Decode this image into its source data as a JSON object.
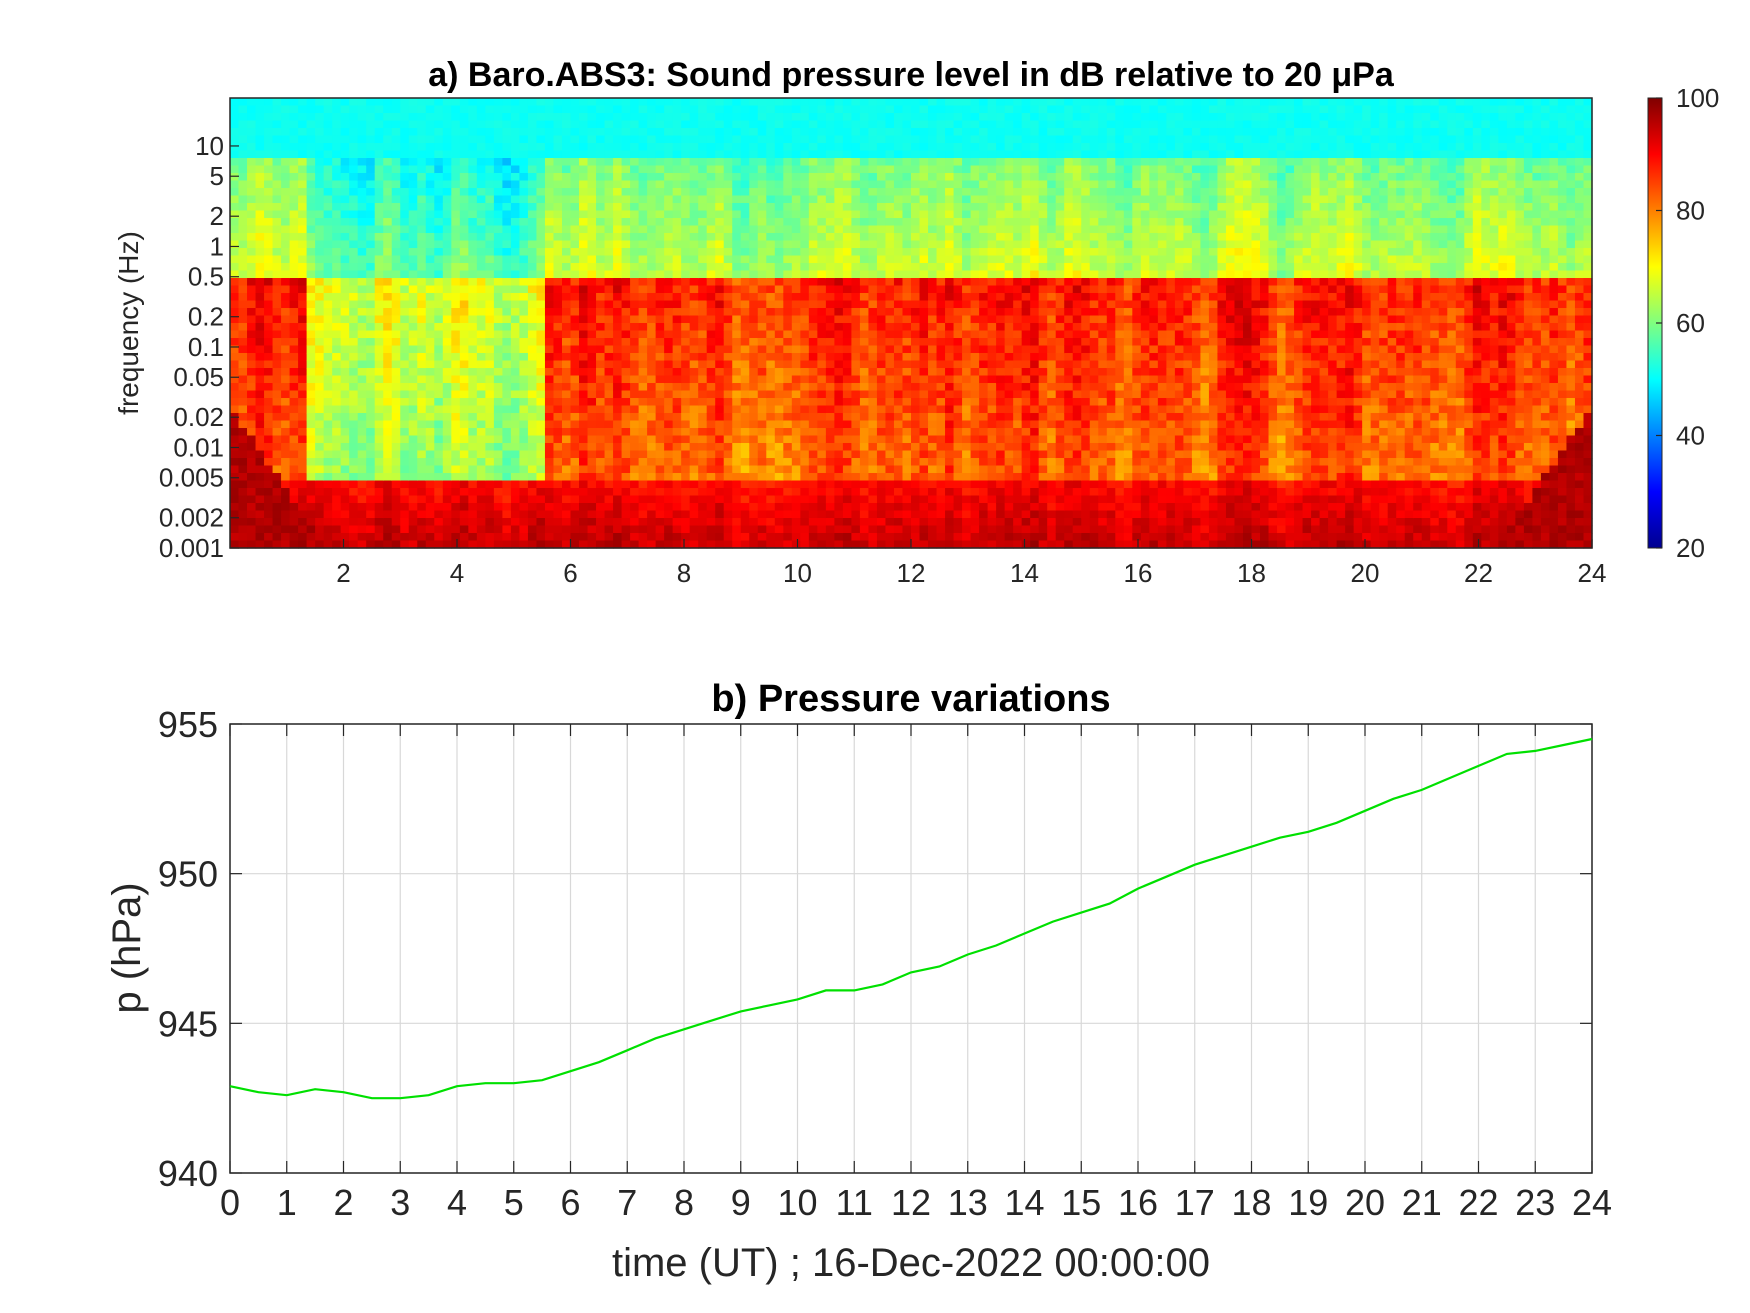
{
  "chart_data": [
    {
      "type": "heatmap",
      "title": "a) Baro.ABS3: Sound pressure level in dB relative to 20 μPa",
      "ylabel": "frequency (Hz)",
      "xlabel": "",
      "x_ticks": [
        2,
        4,
        6,
        8,
        10,
        12,
        14,
        16,
        18,
        20,
        22,
        24
      ],
      "x_tick_labels": [
        "2",
        "4",
        "6",
        "8",
        "10",
        "12",
        "14",
        "16",
        "18",
        "20",
        "22",
        "24"
      ],
      "xlim": [
        0,
        24
      ],
      "y_scale": "log",
      "ylim": [
        0.001,
        30
      ],
      "y_ticks": [
        0.001,
        0.002,
        0.005,
        0.01,
        0.02,
        0.05,
        0.1,
        0.2,
        0.5,
        1,
        2,
        5,
        10
      ],
      "y_tick_labels": [
        "0.001",
        "0.002",
        "0.005",
        "0.01",
        "0.02",
        "0.05",
        "0.1",
        "0.2",
        "0.5",
        "1",
        "2",
        "5",
        "10"
      ],
      "colorbar": {
        "ticks": [
          20,
          40,
          60,
          80,
          100
        ],
        "tick_labels": [
          "20",
          "40",
          "60",
          "80",
          "100"
        ],
        "range": [
          20,
          100
        ],
        "colormap": "jet"
      },
      "description_levels": {
        "above_7Hz": 50,
        "0.5_to_5Hz": 55,
        "0.05_to_0.2Hz": 83,
        "below_0.005Hz": 92
      },
      "quiet_window_hours": [
        1.4,
        5.6
      ]
    },
    {
      "type": "line",
      "title": "b) Pressure variations",
      "xlabel": "time (UT) ; 16-Dec-2022 00:00:00",
      "ylabel": "p (hPa)",
      "xlim": [
        0,
        24
      ],
      "ylim": [
        940,
        955
      ],
      "x_ticks": [
        0,
        1,
        2,
        3,
        4,
        5,
        6,
        7,
        8,
        9,
        10,
        11,
        12,
        13,
        14,
        15,
        16,
        17,
        18,
        19,
        20,
        21,
        22,
        23,
        24
      ],
      "x_tick_labels": [
        "0",
        "1",
        "2",
        "3",
        "4",
        "5",
        "6",
        "7",
        "8",
        "9",
        "10",
        "11",
        "12",
        "13",
        "14",
        "15",
        "16",
        "17",
        "18",
        "19",
        "20",
        "21",
        "22",
        "23",
        "24"
      ],
      "y_ticks": [
        940,
        945,
        950,
        955
      ],
      "y_tick_labels": [
        "940",
        "945",
        "950",
        "955"
      ],
      "grid": true,
      "series": [
        {
          "color": "#00e000",
          "x": [
            0,
            0.5,
            1,
            1.5,
            2,
            2.5,
            3,
            3.5,
            4,
            4.5,
            5,
            5.5,
            6,
            6.5,
            7,
            7.5,
            8,
            8.5,
            9,
            9.5,
            10,
            10.5,
            11,
            11.5,
            12,
            12.5,
            13,
            13.5,
            14,
            14.5,
            15,
            15.5,
            16,
            16.5,
            17,
            17.5,
            18,
            18.5,
            19,
            19.5,
            20,
            20.5,
            21,
            21.5,
            22,
            22.5,
            23,
            23.5,
            24
          ],
          "y": [
            942.9,
            942.7,
            942.6,
            942.8,
            942.7,
            942.5,
            942.5,
            942.6,
            942.9,
            943.0,
            943.0,
            943.1,
            943.4,
            943.7,
            944.1,
            944.5,
            944.8,
            945.1,
            945.4,
            945.6,
            945.8,
            946.1,
            946.1,
            946.3,
            946.7,
            946.9,
            947.3,
            947.6,
            948.0,
            948.4,
            948.7,
            949.0,
            949.5,
            949.9,
            950.3,
            950.6,
            950.9,
            951.2,
            951.4,
            951.7,
            952.1,
            952.5,
            952.8,
            953.2,
            953.6,
            954.0,
            954.1,
            954.3,
            954.5
          ]
        }
      ]
    }
  ]
}
